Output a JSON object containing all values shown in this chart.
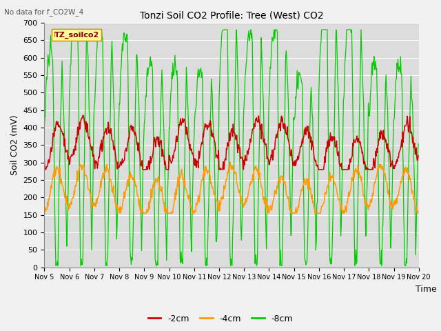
{
  "title": "Tonzi Soil CO2 Profile: Tree (West) CO2",
  "subtitle": "No data for f_CO2W_4",
  "ylabel": "Soil CO2 (mV)",
  "xlabel": "Time",
  "legend_label": "TZ_soilco2",
  "series_labels": [
    "-2cm",
    "-4cm",
    "-8cm"
  ],
  "series_colors": [
    "#cc0000",
    "#ff9900",
    "#00cc00"
  ],
  "ylim": [
    0,
    700
  ],
  "plot_bg_color": "#dcdcdc",
  "fig_bg_color": "#f0f0f0",
  "x_ticks": [
    "Nov 5",
    "Nov 6",
    "Nov 7",
    "Nov 8",
    "Nov 9",
    "Nov 10",
    "Nov 11",
    "Nov 12",
    "Nov 13",
    "Nov 14",
    "Nov 15",
    "Nov 16",
    "Nov 17",
    "Nov 18",
    "Nov 19",
    "Nov 20"
  ],
  "yticks": [
    0,
    50,
    100,
    150,
    200,
    250,
    300,
    350,
    400,
    450,
    500,
    550,
    600,
    650,
    700
  ]
}
